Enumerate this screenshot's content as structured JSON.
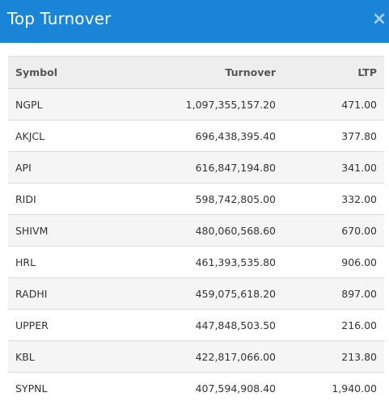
{
  "dialog": {
    "title": "Top Turnover",
    "close_label": "×"
  },
  "table": {
    "columns": [
      "Symbol",
      "Turnover",
      "LTP"
    ],
    "rows": [
      {
        "symbol": "NGPL",
        "turnover": "1,097,355,157.20",
        "ltp": "471.00"
      },
      {
        "symbol": "AKJCL",
        "turnover": "696,438,395.40",
        "ltp": "377.80"
      },
      {
        "symbol": "API",
        "turnover": "616,847,194.80",
        "ltp": "341.00"
      },
      {
        "symbol": "RIDI",
        "turnover": "598,742,805.00",
        "ltp": "332.00"
      },
      {
        "symbol": "SHIVM",
        "turnover": "480,060,568.60",
        "ltp": "670.00"
      },
      {
        "symbol": "HRL",
        "turnover": "461,393,535.80",
        "ltp": "906.00"
      },
      {
        "symbol": "RADHI",
        "turnover": "459,075,618.20",
        "ltp": "897.00"
      },
      {
        "symbol": "UPPER",
        "turnover": "447,848,503.50",
        "ltp": "216.00"
      },
      {
        "symbol": "KBL",
        "turnover": "422,817,066.00",
        "ltp": "213.80"
      },
      {
        "symbol": "SYPNL",
        "turnover": "407,594,908.40",
        "ltp": "1,940.00"
      }
    ]
  },
  "colors": {
    "header_bg": "#1a85d6",
    "header_text": "#ffffff",
    "close_icon": "#a9cfef",
    "table_head_bg": "#eeeeee",
    "row_stripe": "#f5f5f5"
  },
  "icons": {
    "close": "close-icon"
  }
}
